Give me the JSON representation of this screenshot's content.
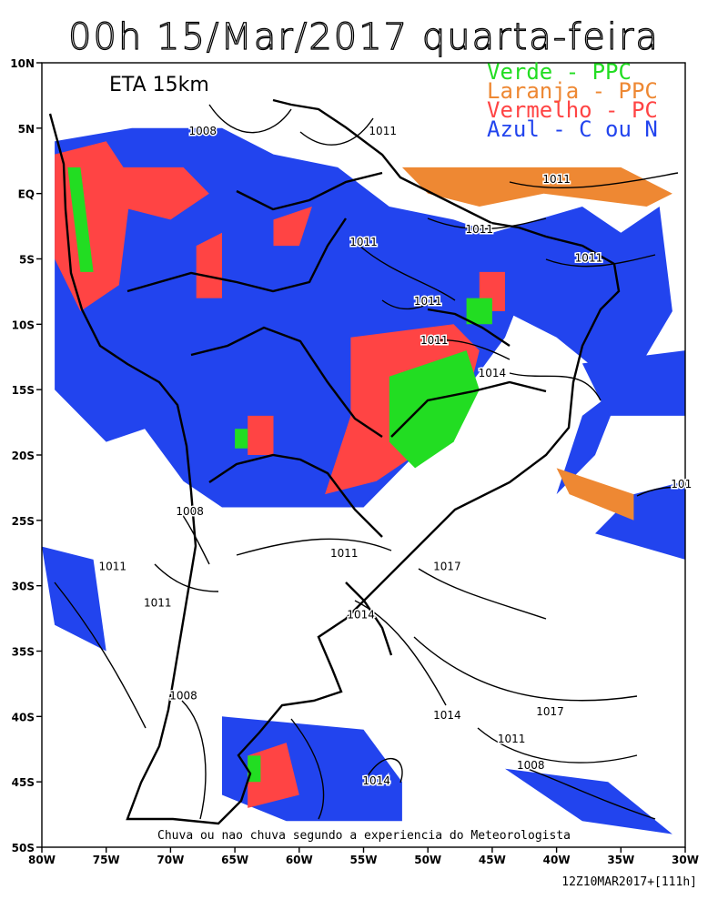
{
  "title": "00h 15/Mar/2017 quarta-feira",
  "model_label": "ETA 15km",
  "legend": [
    {
      "text": "Verde - PPC",
      "color": "#22dd22"
    },
    {
      "text": "Laranja - PPC",
      "color": "#ee8833"
    },
    {
      "text": "Vermelho - PC",
      "color": "#ff4444"
    },
    {
      "text": "Azul - C ou N",
      "color": "#2244ee"
    }
  ],
  "caption": "Chuva ou nao chuva segundo a experiencia do Meteorologista",
  "footer": "12Z10MAR2017+[111h]",
  "lat_labels": [
    "10N",
    "5N",
    "EQ",
    "5S",
    "10S",
    "15S",
    "20S",
    "25S",
    "30S",
    "35S",
    "40S",
    "45S",
    "50S"
  ],
  "lon_labels": [
    "80W",
    "75W",
    "70W",
    "65W",
    "60W",
    "55W",
    "50W",
    "45W",
    "40W",
    "35W",
    "30W"
  ],
  "isobar_labels": [
    {
      "text": "1008",
      "lon": -67.5,
      "lat": 4.5
    },
    {
      "text": "1011",
      "lon": -53.5,
      "lat": 4.5
    },
    {
      "text": "1011",
      "lon": -40.0,
      "lat": 0.8
    },
    {
      "text": "1011",
      "lon": -46.0,
      "lat": -3.0
    },
    {
      "text": "1011",
      "lon": -55.0,
      "lat": -4.0
    },
    {
      "text": "1011",
      "lon": -37.5,
      "lat": -5.2
    },
    {
      "text": "1011",
      "lon": -50.0,
      "lat": -8.5
    },
    {
      "text": "1011",
      "lon": -49.5,
      "lat": -11.5
    },
    {
      "text": "1014",
      "lon": -45.0,
      "lat": -14.0
    },
    {
      "text": "101",
      "lon": -30.3,
      "lat": -22.5
    },
    {
      "text": "1008",
      "lon": -68.5,
      "lat": -24.6
    },
    {
      "text": "1011",
      "lon": -56.5,
      "lat": -27.8
    },
    {
      "text": "1011",
      "lon": -74.5,
      "lat": -28.8
    },
    {
      "text": "1017",
      "lon": -48.5,
      "lat": -28.8
    },
    {
      "text": "1011",
      "lon": -71.0,
      "lat": -31.6
    },
    {
      "text": "1014",
      "lon": -55.2,
      "lat": -32.5
    },
    {
      "text": "1008",
      "lon": -69.0,
      "lat": -38.7
    },
    {
      "text": "1017",
      "lon": -40.5,
      "lat": -39.9
    },
    {
      "text": "1014",
      "lon": -48.5,
      "lat": -40.2
    },
    {
      "text": "1011",
      "lon": -43.5,
      "lat": -42.0
    },
    {
      "text": "1008",
      "lon": -42.0,
      "lat": -44.0
    },
    {
      "text": "1014",
      "lon": -54.0,
      "lat": -45.2
    }
  ],
  "areas": [
    {
      "category": "Azul - C ou N",
      "color": "#2244ee",
      "points": [
        [
          -79,
          4
        ],
        [
          -79,
          -15
        ],
        [
          -75,
          -19
        ],
        [
          -72,
          -18
        ],
        [
          -69,
          -22
        ],
        [
          -66,
          -24
        ],
        [
          -60,
          -24
        ],
        [
          -55,
          -24
        ],
        [
          -51,
          -20
        ],
        [
          -47,
          -15
        ],
        [
          -44,
          -11
        ],
        [
          -42,
          -6
        ],
        [
          -45,
          -3
        ],
        [
          -48,
          -2
        ],
        [
          -53,
          -1
        ],
        [
          -57,
          2
        ],
        [
          -62,
          3
        ],
        [
          -66,
          5
        ],
        [
          -73,
          5
        ]
      ]
    },
    {
      "category": "Azul - C ou N",
      "color": "#2244ee",
      "points": [
        [
          -45,
          -3
        ],
        [
          -38,
          -1
        ],
        [
          -35,
          -3
        ],
        [
          -32,
          -1
        ],
        [
          -31,
          -9
        ],
        [
          -34,
          -14
        ],
        [
          -38,
          -17
        ],
        [
          -40,
          -23
        ],
        [
          -37,
          -20
        ],
        [
          -35,
          -15
        ],
        [
          -40,
          -11
        ],
        [
          -44,
          -9
        ]
      ]
    },
    {
      "category": "Azul - C ou N",
      "color": "#2244ee",
      "points": [
        [
          -38,
          -13
        ],
        [
          -30,
          -12
        ],
        [
          -30,
          -17
        ],
        [
          -36,
          -17
        ]
      ]
    },
    {
      "category": "Azul - C ou N",
      "color": "#2244ee",
      "points": [
        [
          -34,
          -23
        ],
        [
          -30,
          -22
        ],
        [
          -30,
          -28
        ],
        [
          -37,
          -26
        ]
      ]
    },
    {
      "category": "Azul - C ou N",
      "color": "#2244ee",
      "points": [
        [
          -80,
          -27
        ],
        [
          -76,
          -28
        ],
        [
          -75,
          -35
        ],
        [
          -79,
          -33
        ]
      ]
    },
    {
      "category": "Azul - C ou N",
      "color": "#2244ee",
      "points": [
        [
          -66,
          -40
        ],
        [
          -55,
          -41
        ],
        [
          -52,
          -45
        ],
        [
          -52,
          -48
        ],
        [
          -61,
          -48
        ],
        [
          -66,
          -46
        ]
      ]
    },
    {
      "category": "Azul - C ou N",
      "color": "#2244ee",
      "points": [
        [
          -44,
          -44
        ],
        [
          -36,
          -45
        ],
        [
          -31,
          -49
        ],
        [
          -38,
          -48
        ]
      ]
    },
    {
      "category": "Vermelho - PC",
      "color": "#ff4444",
      "points": [
        [
          -79,
          3
        ],
        [
          -75,
          4
        ],
        [
          -73,
          1
        ],
        [
          -74,
          -7
        ],
        [
          -77,
          -9
        ],
        [
          -79,
          -5
        ]
      ]
    },
    {
      "category": "Vermelho - PC",
      "color": "#ff4444",
      "points": [
        [
          -74,
          2
        ],
        [
          -69,
          2
        ],
        [
          -67,
          0
        ],
        [
          -70,
          -2
        ],
        [
          -74,
          -1
        ]
      ]
    },
    {
      "category": "Vermelho - PC",
      "color": "#ff4444",
      "points": [
        [
          -68,
          -4
        ],
        [
          -66,
          -3
        ],
        [
          -66,
          -8
        ],
        [
          -68,
          -8
        ]
      ]
    },
    {
      "category": "Vermelho - PC",
      "color": "#ff4444",
      "points": [
        [
          -56,
          -11
        ],
        [
          -48,
          -10
        ],
        [
          -46,
          -12
        ],
        [
          -47,
          -16
        ],
        [
          -51,
          -20
        ],
        [
          -54,
          -22
        ],
        [
          -58,
          -23
        ],
        [
          -56,
          -17
        ]
      ]
    },
    {
      "category": "Vermelho - PC",
      "color": "#ff4444",
      "points": [
        [
          -64,
          -17
        ],
        [
          -62,
          -17
        ],
        [
          -62,
          -20
        ],
        [
          -64,
          -20
        ]
      ]
    },
    {
      "category": "Vermelho - PC",
      "color": "#ff4444",
      "points": [
        [
          -46,
          -6
        ],
        [
          -44,
          -6
        ],
        [
          -44,
          -9
        ],
        [
          -46,
          -9
        ]
      ]
    },
    {
      "category": "Vermelho - PC",
      "color": "#ff4444",
      "points": [
        [
          -64,
          -43
        ],
        [
          -61,
          -42
        ],
        [
          -60,
          -46
        ],
        [
          -64,
          -47
        ]
      ]
    },
    {
      "category": "Vermelho - PC",
      "color": "#ff4444",
      "points": [
        [
          -62,
          -2
        ],
        [
          -59,
          -1
        ],
        [
          -60,
          -4
        ],
        [
          -62,
          -4
        ]
      ]
    },
    {
      "category": "Verde - PPC",
      "color": "#22dd22",
      "points": [
        [
          -53,
          -14
        ],
        [
          -47,
          -12
        ],
        [
          -46,
          -15
        ],
        [
          -48,
          -19
        ],
        [
          -51,
          -21
        ],
        [
          -53,
          -19
        ]
      ]
    },
    {
      "category": "Verde - PPC",
      "color": "#22dd22",
      "points": [
        [
          -47,
          -8
        ],
        [
          -45,
          -8
        ],
        [
          -45,
          -10
        ],
        [
          -47,
          -10
        ]
      ]
    },
    {
      "category": "Verde - PPC",
      "color": "#22dd22",
      "points": [
        [
          -78,
          2
        ],
        [
          -77,
          2
        ],
        [
          -76,
          -6
        ],
        [
          -77,
          -6
        ]
      ]
    },
    {
      "category": "Verde - PPC",
      "color": "#22dd22",
      "points": [
        [
          -65,
          -18
        ],
        [
          -64,
          -18
        ],
        [
          -64,
          -19.5
        ],
        [
          -65,
          -19.5
        ]
      ]
    },
    {
      "category": "Verde - PPC",
      "color": "#22dd22",
      "points": [
        [
          -64,
          -43
        ],
        [
          -63,
          -43
        ],
        [
          -63,
          -45
        ],
        [
          -64,
          -45
        ]
      ]
    },
    {
      "category": "Laranja - PPC",
      "color": "#ee8833",
      "points": [
        [
          -52,
          2
        ],
        [
          -42,
          2
        ],
        [
          -35,
          2
        ],
        [
          -31,
          0
        ],
        [
          -33,
          -1
        ],
        [
          -41,
          0
        ],
        [
          -46,
          -1
        ],
        [
          -50,
          0
        ]
      ]
    },
    {
      "category": "Laranja - PPC",
      "color": "#ee8833",
      "points": [
        [
          -40,
          -21
        ],
        [
          -34,
          -23
        ],
        [
          -34,
          -25
        ],
        [
          -39,
          -23
        ]
      ]
    }
  ]
}
